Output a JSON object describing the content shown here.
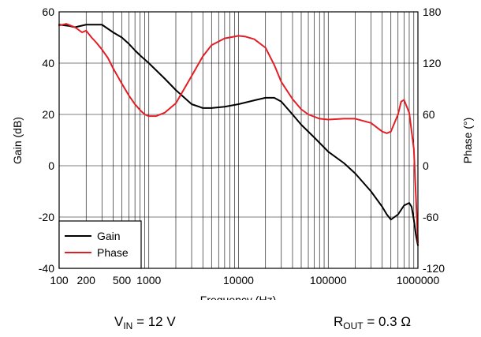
{
  "chart_data": {
    "type": "line",
    "xlabel": "Frequency (Hz)",
    "ylabel_left": "Gain (dB)",
    "ylabel_right": "Phase (°)",
    "x_scale": "log",
    "xlim": [
      100,
      1000000
    ],
    "ylim_left": [
      -40,
      60
    ],
    "ylim_right": [
      -120,
      180
    ],
    "grid": true,
    "legend_position": "bottom-left",
    "x_ticks": [
      {
        "value": 100,
        "label": "100"
      },
      {
        "value": 200,
        "label": "200"
      },
      {
        "value": 500,
        "label": "500"
      },
      {
        "value": 1000,
        "label": "1000"
      },
      {
        "value": 10000,
        "label": "10000"
      },
      {
        "value": 100000,
        "label": "100000"
      },
      {
        "value": 1000000,
        "label": "1000000"
      }
    ],
    "y_ticks_left": [
      -40,
      -20,
      0,
      20,
      40,
      60
    ],
    "y_ticks_right": [
      -120,
      -60,
      0,
      60,
      120,
      180
    ],
    "series": [
      {
        "name": "Gain",
        "axis": "left",
        "color": "#000000",
        "x": [
          100,
          130,
          150,
          200,
          300,
          400,
          500,
          600,
          700,
          800,
          1000,
          1500,
          2000,
          3000,
          4000,
          5000,
          7000,
          10000,
          15000,
          20000,
          25000,
          30000,
          40000,
          50000,
          70000,
          100000,
          150000,
          200000,
          300000,
          400000,
          450000,
          500000,
          600000,
          700000,
          800000,
          850000,
          900000,
          950000,
          1000000
        ],
        "y": [
          55,
          54.5,
          54,
          55,
          55,
          52,
          50,
          47.5,
          45,
          43,
          40,
          34,
          29.5,
          24,
          22.5,
          22.5,
          23,
          24,
          25.5,
          26.5,
          26.5,
          25,
          20,
          16,
          11,
          5.5,
          1,
          -3,
          -10,
          -16,
          -19,
          -21,
          -19,
          -15.5,
          -14.5,
          -16,
          -21,
          -27,
          -31
        ]
      },
      {
        "name": "Phase",
        "axis": "right",
        "color": "#e31e24",
        "x": [
          100,
          120,
          150,
          180,
          200,
          230,
          260,
          300,
          350,
          400,
          500,
          600,
          700,
          800,
          900,
          1000,
          1200,
          1500,
          2000,
          3000,
          4000,
          5000,
          7000,
          10000,
          12000,
          15000,
          20000,
          25000,
          30000,
          40000,
          50000,
          60000,
          80000,
          100000,
          150000,
          200000,
          300000,
          400000,
          450000,
          500000,
          600000,
          650000,
          700000,
          800000,
          900000,
          1000000
        ],
        "y": [
          164,
          166,
          162,
          156,
          158,
          150,
          144,
          136,
          126,
          114,
          96,
          82,
          72,
          65,
          60,
          58,
          58,
          62,
          73,
          105,
          128,
          141,
          149,
          152,
          151,
          148,
          138,
          118,
          98,
          78,
          66,
          60,
          55,
          54,
          55,
          55,
          50,
          40,
          38,
          40,
          60,
          75,
          77,
          62,
          20,
          -90
        ]
      }
    ]
  },
  "legend": {
    "items": [
      {
        "label": "Gain",
        "color": "#000000"
      },
      {
        "label": "Phase",
        "color": "#e31e24"
      }
    ]
  },
  "conditions": {
    "vin_symbol": "V",
    "vin_sub": "IN",
    "vin_value": " = 12 V",
    "rout_symbol": "R",
    "rout_sub": "OUT",
    "rout_value": " = 0.3 Ω"
  }
}
